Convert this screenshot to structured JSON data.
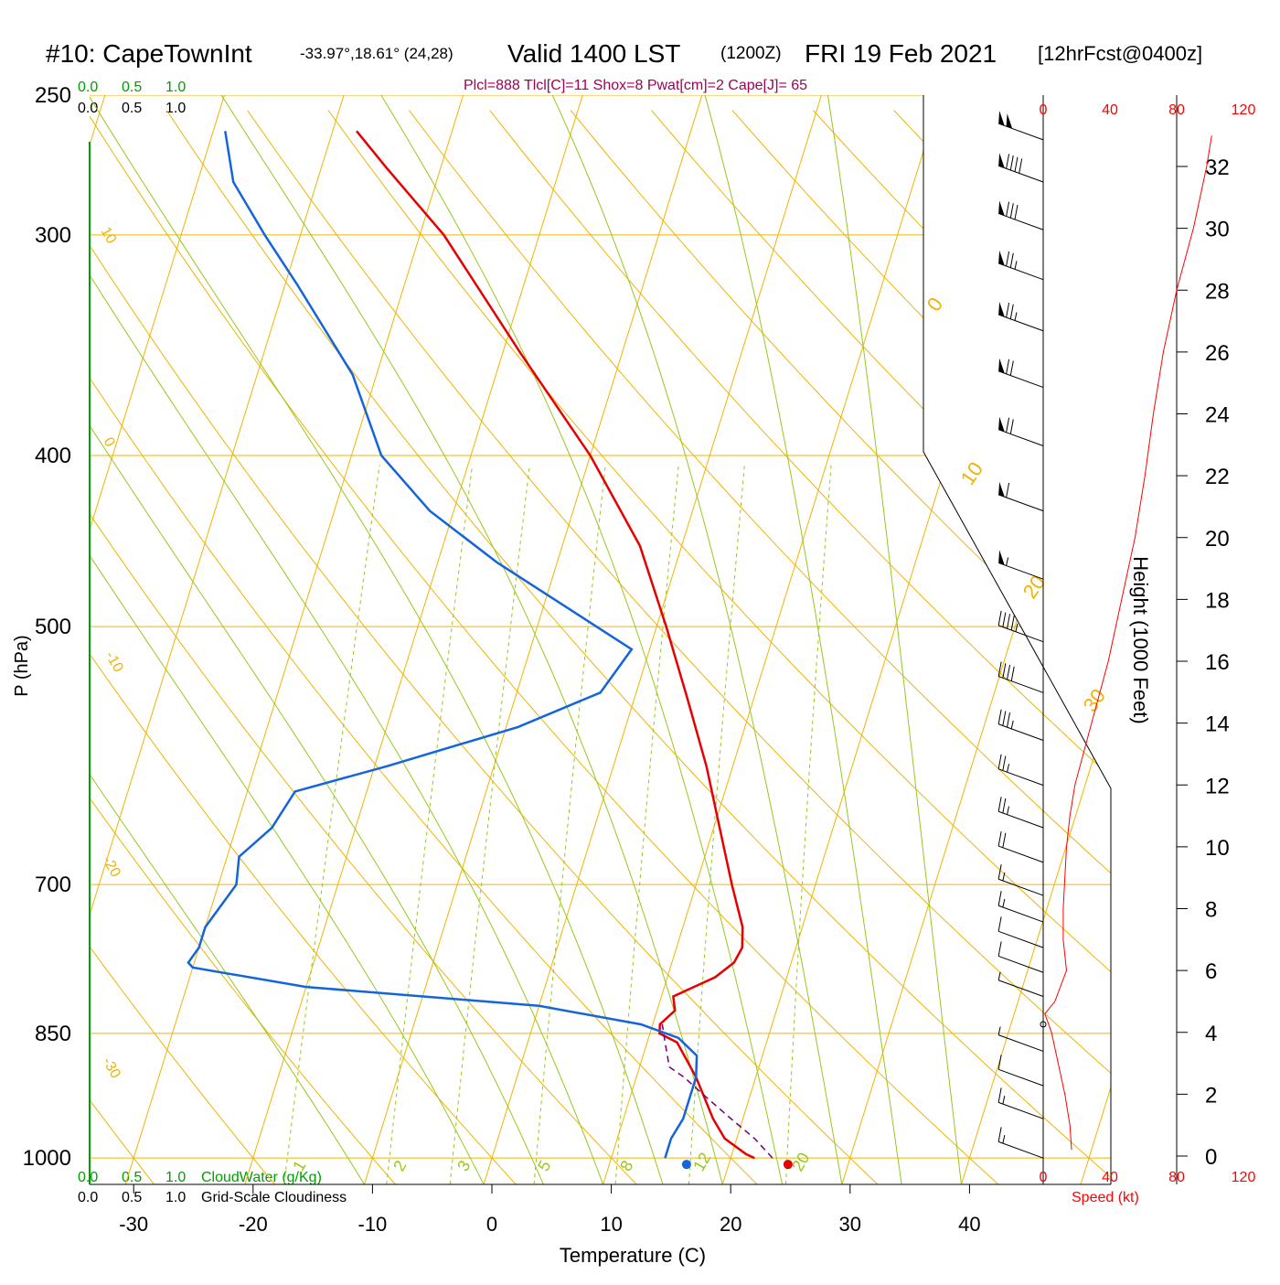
{
  "header": {
    "station": "#10: CapeTownInt",
    "coords": "-33.97°,18.61° (24,28)",
    "valid": "Valid 1400 LST",
    "utc": "(1200Z)",
    "date": "FRI 19 Feb 2021",
    "forecast": "[12hrFcst@0400z]",
    "params": "Plcl=888 Tlcl[C]=11 Shox=8 Pwat[cm]=2 Cape[J]= 65"
  },
  "colors": {
    "isotherm": "#f0b400",
    "dry_adiabat": "#f0b400",
    "moist_adiabat": "#96c81e",
    "mixing_ratio": "#96c81e",
    "temperature": "#e60000",
    "dewpoint": "#1464dc",
    "parcel": "#700070",
    "header_param": "#a0005a",
    "cloud_scale": "#00a000",
    "wind_scale": "#ff0000"
  },
  "top_scales": {
    "cloudwater_ticks": [
      "0.0",
      "0.5",
      "1.0"
    ],
    "cloudiness_ticks": [
      "0.0",
      "0.5",
      "1.0"
    ]
  },
  "bottom_scales": {
    "cloudwater_ticks": [
      "0.0",
      "0.5",
      "1.0"
    ],
    "cloudwater_label": "CloudWater (g/Kg)",
    "cloudiness_ticks": [
      "0.0",
      "0.5",
      "1.0"
    ],
    "cloudiness_label": "Grid-Scale Cloudiness"
  },
  "wind_panel": {
    "speed_ticks": [
      "0",
      "40",
      "80",
      "120"
    ],
    "speed_label": "Speed (kt)",
    "height_label": "Height (1000 Feet)",
    "height_ticks": [
      "0",
      "2",
      "4",
      "6",
      "8",
      "10",
      "12",
      "14",
      "16",
      "18",
      "20",
      "22",
      "24",
      "26",
      "28",
      "30",
      "32"
    ],
    "speed_profile_kt": [
      {
        "height_kft": 0.2,
        "speed_kt": 17
      },
      {
        "height_kft": 1.0,
        "speed_kt": 16
      },
      {
        "height_kft": 2.0,
        "speed_kt": 13
      },
      {
        "height_kft": 3.0,
        "speed_kt": 9
      },
      {
        "height_kft": 4.0,
        "speed_kt": 5
      },
      {
        "height_kft": 4.6,
        "speed_kt": 1
      },
      {
        "height_kft": 5.0,
        "speed_kt": 7
      },
      {
        "height_kft": 6.0,
        "speed_kt": 14
      },
      {
        "height_kft": 7.0,
        "speed_kt": 12
      },
      {
        "height_kft": 8.0,
        "speed_kt": 12
      },
      {
        "height_kft": 9.0,
        "speed_kt": 13
      },
      {
        "height_kft": 10.0,
        "speed_kt": 14
      },
      {
        "height_kft": 11.0,
        "speed_kt": 16
      },
      {
        "height_kft": 12.0,
        "speed_kt": 19
      },
      {
        "height_kft": 14.0,
        "speed_kt": 29
      },
      {
        "height_kft": 16.0,
        "speed_kt": 39
      },
      {
        "height_kft": 18.0,
        "speed_kt": 47
      },
      {
        "height_kft": 20.0,
        "speed_kt": 55
      },
      {
        "height_kft": 22.0,
        "speed_kt": 61
      },
      {
        "height_kft": 24.0,
        "speed_kt": 66
      },
      {
        "height_kft": 26.0,
        "speed_kt": 72
      },
      {
        "height_kft": 28.0,
        "speed_kt": 80
      },
      {
        "height_kft": 30.0,
        "speed_kt": 90
      },
      {
        "height_kft": 32.0,
        "speed_kt": 98
      },
      {
        "height_kft": 33.0,
        "speed_kt": 101
      }
    ]
  },
  "chart_data": {
    "type": "line",
    "title": "#10: CapeTownInt",
    "xlabel": "Temperature (C)",
    "ylabel": "P (hPa)",
    "x_ticks": [
      "-30",
      "-20",
      "-10",
      "0",
      "10",
      "20",
      "30",
      "40"
    ],
    "y_ticks": [
      "250",
      "300",
      "400",
      "500",
      "700",
      "850",
      "1000"
    ],
    "xlim": [
      -34.5,
      46
    ],
    "plim": [
      1035,
      250
    ],
    "isotherm_labels": [
      "10",
      "0",
      "-10",
      "-20",
      "-30",
      "0",
      "10",
      "20",
      "30"
    ],
    "mixing_ratio_labels": [
      "1",
      "2",
      "3",
      "5",
      "8",
      "12",
      "20"
    ],
    "series": [
      {
        "name": "temperature",
        "points": [
          {
            "p": 1000,
            "t": 22.0
          },
          {
            "p": 995,
            "t": 21.2
          },
          {
            "p": 975,
            "t": 19.0
          },
          {
            "p": 950,
            "t": 17.5
          },
          {
            "p": 900,
            "t": 15.0
          },
          {
            "p": 860,
            "t": 12.5
          },
          {
            "p": 850,
            "t": 10.8
          },
          {
            "p": 840,
            "t": 10.6
          },
          {
            "p": 825,
            "t": 11.5
          },
          {
            "p": 810,
            "t": 11.0
          },
          {
            "p": 790,
            "t": 14.0
          },
          {
            "p": 775,
            "t": 15.2
          },
          {
            "p": 760,
            "t": 15.5
          },
          {
            "p": 740,
            "t": 15.0
          },
          {
            "p": 700,
            "t": 13.0
          },
          {
            "p": 650,
            "t": 10.5
          },
          {
            "p": 600,
            "t": 7.8
          },
          {
            "p": 550,
            "t": 4.5
          },
          {
            "p": 500,
            "t": 0.8
          },
          {
            "p": 450,
            "t": -3.5
          },
          {
            "p": 400,
            "t": -10.0
          },
          {
            "p": 350,
            "t": -18.5
          },
          {
            "p": 300,
            "t": -28.0
          },
          {
            "p": 275,
            "t": -34.5
          },
          {
            "p": 262,
            "t": -38.0
          }
        ]
      },
      {
        "name": "dewpoint",
        "points": [
          {
            "p": 1000,
            "t": 14.5
          },
          {
            "p": 975,
            "t": 14.5
          },
          {
            "p": 950,
            "t": 15.0
          },
          {
            "p": 900,
            "t": 15.0
          },
          {
            "p": 875,
            "t": 14.5
          },
          {
            "p": 855,
            "t": 12.5
          },
          {
            "p": 840,
            "t": 9.0
          },
          {
            "p": 820,
            "t": 0.0
          },
          {
            "p": 800,
            "t": -20.0
          },
          {
            "p": 780,
            "t": -30.0
          },
          {
            "p": 775,
            "t": -30.5
          },
          {
            "p": 760,
            "t": -30.0
          },
          {
            "p": 740,
            "t": -30.0
          },
          {
            "p": 700,
            "t": -28.5
          },
          {
            "p": 675,
            "t": -29.0
          },
          {
            "p": 650,
            "t": -27.0
          },
          {
            "p": 620,
            "t": -26.0
          },
          {
            "p": 600,
            "t": -19.0
          },
          {
            "p": 570,
            "t": -9.0
          },
          {
            "p": 545,
            "t": -3.0
          },
          {
            "p": 515,
            "t": -1.5
          },
          {
            "p": 460,
            "t": -15.0
          },
          {
            "p": 430,
            "t": -22.0
          },
          {
            "p": 400,
            "t": -27.5
          },
          {
            "p": 360,
            "t": -32.0
          },
          {
            "p": 320,
            "t": -39.0
          },
          {
            "p": 300,
            "t": -43.0
          },
          {
            "p": 280,
            "t": -47.0
          },
          {
            "p": 262,
            "t": -49.0
          }
        ]
      },
      {
        "name": "parcel",
        "points": [
          {
            "p": 1000,
            "t": 23.5
          },
          {
            "p": 975,
            "t": 21.5
          },
          {
            "p": 950,
            "t": 19.0
          },
          {
            "p": 925,
            "t": 16.5
          },
          {
            "p": 900,
            "t": 14.0
          },
          {
            "p": 888,
            "t": 12.5
          },
          {
            "p": 860,
            "t": 11.5
          },
          {
            "p": 840,
            "t": 10.8
          }
        ]
      }
    ],
    "surface_points": {
      "temperature": 24.8,
      "dewpoint": 16.3
    },
    "wind_barbs": [
      {
        "p": 265,
        "speed_kt": 100
      },
      {
        "p": 280,
        "speed_kt": 90
      },
      {
        "p": 298,
        "speed_kt": 80
      },
      {
        "p": 318,
        "speed_kt": 75
      },
      {
        "p": 340,
        "speed_kt": 75
      },
      {
        "p": 366,
        "speed_kt": 70
      },
      {
        "p": 395,
        "speed_kt": 70
      },
      {
        "p": 430,
        "speed_kt": 60
      },
      {
        "p": 470,
        "speed_kt": 55
      },
      {
        "p": 510,
        "speed_kt": 45
      },
      {
        "p": 545,
        "speed_kt": 40
      },
      {
        "p": 580,
        "speed_kt": 35
      },
      {
        "p": 615,
        "speed_kt": 25
      },
      {
        "p": 650,
        "speed_kt": 25
      },
      {
        "p": 680,
        "speed_kt": 20
      },
      {
        "p": 710,
        "speed_kt": 15
      },
      {
        "p": 735,
        "speed_kt": 15
      },
      {
        "p": 760,
        "speed_kt": 10
      },
      {
        "p": 785,
        "speed_kt": 10
      },
      {
        "p": 810,
        "speed_kt": 5
      },
      {
        "p": 840,
        "speed_kt": 0
      },
      {
        "p": 870,
        "speed_kt": 5
      },
      {
        "p": 910,
        "speed_kt": 10
      },
      {
        "p": 950,
        "speed_kt": 15
      },
      {
        "p": 1000,
        "speed_kt": 15
      }
    ]
  }
}
